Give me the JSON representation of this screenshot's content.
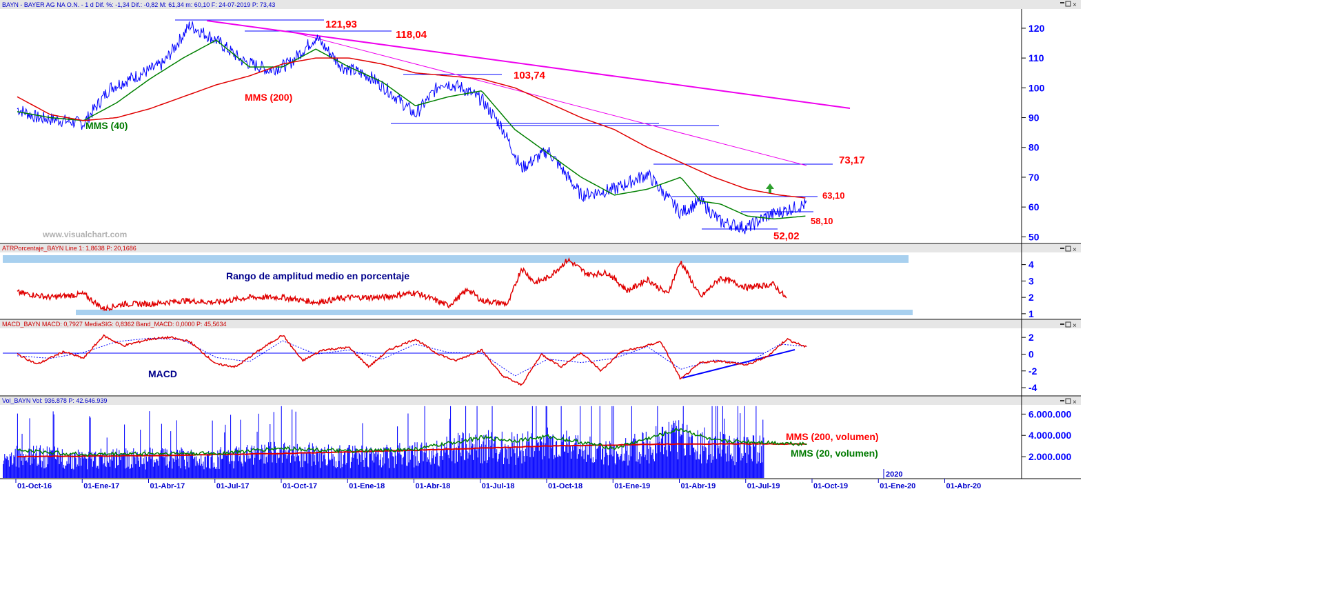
{
  "panels": {
    "price_header": "BAYN - BAYER AG NA O.N. - 1 d Dif. %: -1,34 Dif.: -0,82 M: 61,34 m: 60,10 F: 24-07-2019 P: 73,43",
    "atr_header": "ATRPorcentaje_BAYN Line 1: 1,8638 P: 20,1686",
    "macd_header": "MACD_BAYN MACD: 0,7927 MediaSIG: 0,8362 Band_MACD: 0,0000 P: 45,5634",
    "vol_header": "Vol_BAYN Vol: 936.878 P: 42.646.939"
  },
  "annotations": {
    "p121": "121,93",
    "p118": "118,04",
    "p103": "103,74",
    "p73": "73,17",
    "p63": "63,10",
    "p58": "58,10",
    "p52": "52,02",
    "mms200": "MMS (200)",
    "mms40": "MMS (40)",
    "watermark": "www.visualchart.com",
    "atr_title": "Rango de amplitud medio en porcentaje",
    "macd_title": "MACD",
    "vol_mms200": "MMS (200, volumen)",
    "vol_mms20": "MMS (20, volumen)",
    "year_2020": "2020"
  },
  "chart_data": [
    {
      "type": "line",
      "title": "BAYN - BAYER AG NA O.N. - 1 d",
      "x_labels": [
        "01-Oct-16",
        "01-Ene-17",
        "01-Abr-17",
        "01-Jul-17",
        "01-Oct-17",
        "01-Ene-18",
        "01-Abr-18",
        "01-Jul-18",
        "01-Oct-18",
        "01-Ene-19",
        "01-Abr-19",
        "01-Jul-19",
        "01-Oct-19",
        "01-Ene-20",
        "01-Abr-20"
      ],
      "y_ticks": [
        50,
        60,
        70,
        80,
        90,
        100,
        110,
        120
      ],
      "ylim": [
        48,
        126
      ],
      "series": [
        {
          "name": "BAYN",
          "x": [
            0,
            0.3,
            0.7,
            1,
            1.4,
            1.8,
            2.2,
            2.6,
            3,
            3.4,
            3.8,
            4.1,
            4.5,
            4.9,
            5.3,
            5.6,
            6,
            6.4,
            6.7,
            7,
            7.3,
            7.6,
            8,
            8.5,
            9,
            9.5,
            10,
            10.3,
            10.6,
            11,
            11.3,
            11.6,
            11.9
          ],
          "values": [
            93,
            90,
            89,
            88,
            100,
            104,
            108,
            121,
            116,
            109,
            106,
            108,
            117,
            107,
            104,
            99,
            91,
            102,
            100,
            96,
            87,
            73,
            79,
            64,
            66,
            71,
            58,
            62,
            55,
            53,
            57,
            59,
            61
          ]
        },
        {
          "name": "MMS (40)",
          "x": [
            0,
            0.5,
            1,
            1.5,
            2,
            2.5,
            3,
            3.5,
            4,
            4.5,
            5,
            5.5,
            6,
            6.5,
            7,
            7.5,
            8,
            8.5,
            9,
            9.5,
            10,
            10.3,
            10.6,
            11,
            11.4,
            11.9
          ],
          "values": [
            92,
            90,
            89,
            95,
            103,
            110,
            116,
            107,
            107,
            113,
            107,
            102,
            94,
            97,
            99,
            86,
            78,
            70,
            64,
            66,
            70,
            62,
            61,
            57,
            56,
            57
          ]
        },
        {
          "name": "MMS (200)",
          "x": [
            0,
            0.5,
            1,
            1.5,
            2,
            2.5,
            3,
            3.5,
            4,
            4.5,
            5,
            5.5,
            6,
            6.5,
            7,
            7.5,
            8,
            8.5,
            9,
            9.5,
            10,
            10.5,
            11,
            11.5,
            11.9
          ],
          "values": [
            97,
            91,
            89,
            90,
            93,
            97,
            101,
            104,
            108,
            110,
            110,
            108,
            105,
            104,
            103,
            100,
            95,
            90,
            86,
            80,
            75,
            70,
            66,
            64,
            63
          ]
        }
      ]
    },
    {
      "type": "line",
      "title": "ATRPorcentaje_BAYN",
      "y_ticks": [
        1,
        2,
        3,
        4
      ],
      "ylim": [
        0.7,
        4.7
      ],
      "series": [
        {
          "name": "Line 1",
          "x": [
            0,
            0.5,
            1,
            1.3,
            1.6,
            2,
            2.5,
            3,
            3.5,
            4,
            4.5,
            5,
            5.5,
            6,
            6.5,
            6.8,
            7,
            7.4,
            7.6,
            7.8,
            8,
            8.3,
            8.6,
            8.9,
            9.2,
            9.5,
            9.8,
            10,
            10.3,
            10.6,
            11,
            11.4,
            11.6
          ],
          "values": [
            2.3,
            2.0,
            2.2,
            1.3,
            1.6,
            1.6,
            1.8,
            1.7,
            2.0,
            2.0,
            1.7,
            2.0,
            2.0,
            2.3,
            1.5,
            2.5,
            1.8,
            1.6,
            3.8,
            2.9,
            3.2,
            4.3,
            3.4,
            3.5,
            2.4,
            3.1,
            2.2,
            4.2,
            2.0,
            3.2,
            2.6,
            2.8,
            1.9
          ]
        }
      ]
    },
    {
      "type": "line",
      "title": "MACD_BAYN",
      "y_ticks": [
        -4,
        -2,
        0,
        2
      ],
      "ylim": [
        -4.9,
        3.0
      ],
      "series": [
        {
          "name": "MACD",
          "x": [
            0,
            0.3,
            0.7,
            1,
            1.3,
            1.6,
            2,
            2.3,
            2.6,
            3,
            3.3,
            3.6,
            4,
            4.3,
            4.6,
            5,
            5.3,
            5.6,
            6,
            6.3,
            6.6,
            7,
            7.3,
            7.6,
            7.9,
            8.2,
            8.5,
            8.8,
            9.1,
            9.4,
            9.7,
            10,
            10.3,
            10.6,
            11,
            11.3,
            11.6,
            11.9
          ],
          "values": [
            0,
            -1.2,
            0.3,
            -0.5,
            2.2,
            1.0,
            1.8,
            2.0,
            1.5,
            -1.2,
            -1.5,
            0.2,
            2.3,
            -0.8,
            0.5,
            0.8,
            -1.5,
            0.5,
            1.8,
            0.2,
            -0.8,
            0.5,
            -2.5,
            -3.7,
            0.0,
            -1.5,
            0.2,
            -2.0,
            0.3,
            0.8,
            1.5,
            -3.0,
            -1.0,
            -0.8,
            -1.3,
            -0.3,
            1.8,
            0.8
          ]
        },
        {
          "name": "MediaSIG",
          "x": [
            0,
            0.5,
            1,
            1.5,
            2,
            2.5,
            3,
            3.5,
            4,
            4.5,
            5,
            5.5,
            6,
            6.5,
            7,
            7.5,
            8,
            8.5,
            9,
            9.5,
            10,
            10.5,
            11,
            11.5,
            11.9
          ],
          "values": [
            -0.2,
            -0.5,
            0.2,
            1.5,
            1.9,
            1.7,
            -0.4,
            -0.9,
            1.6,
            0.0,
            0.5,
            -0.6,
            1.2,
            0.2,
            0.1,
            -2.6,
            -0.6,
            -1.0,
            -0.5,
            0.9,
            -1.8,
            -0.7,
            -1.1,
            1.2,
            0.9
          ]
        }
      ]
    },
    {
      "type": "bar",
      "title": "Vol_BAYN",
      "y_ticks": [
        2000000,
        4000000,
        6000000
      ],
      "y_tick_labels": [
        "2.000.000",
        "4.000.000",
        "6.000.000"
      ],
      "ylim": [
        0,
        6800000
      ],
      "series": [
        {
          "name": "MMS (200, volumen)",
          "x": [
            0,
            2,
            4,
            6,
            8,
            10,
            11.9
          ],
          "values": [
            2000000,
            2100000,
            2300000,
            2600000,
            3000000,
            3200000,
            3200000
          ]
        },
        {
          "name": "MMS (20, volumen)",
          "x": [
            0,
            1,
            2,
            3,
            4,
            5,
            6,
            7,
            7.5,
            8,
            9,
            10,
            10.5,
            11,
            11.5,
            11.9
          ],
          "values": [
            2600000,
            2200000,
            2300000,
            2300000,
            2800000,
            2500000,
            2700000,
            3800000,
            3500000,
            3900000,
            2800000,
            4600000,
            3500000,
            3400000,
            3300000,
            3200000
          ]
        }
      ]
    }
  ]
}
